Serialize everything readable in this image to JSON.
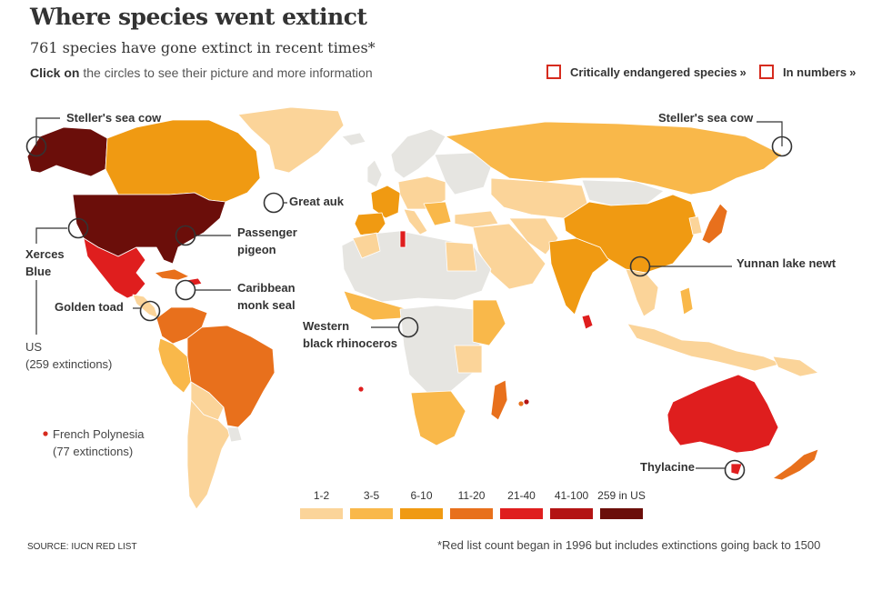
{
  "header": {
    "title": "Where species went extinct",
    "subtitle": "761 species have gone extinct in recent times*",
    "instruction_bold": "Click on",
    "instruction_rest": " the circles to see their picture and more information"
  },
  "toggles": [
    {
      "label": "Critically endangered species",
      "chevron": "»"
    },
    {
      "label": "In numbers",
      "chevron": "»"
    }
  ],
  "colors": {
    "c1_2": "#fbd499",
    "c3_5": "#f9b84a",
    "c6_10": "#f09a12",
    "c11_20": "#e8701c",
    "c21_40": "#df1e1e",
    "c41_100": "#b31414",
    "c259": "#6b0e0a",
    "nodata": "#e6e5e1",
    "accent": "#d62b1e"
  },
  "markers": [
    {
      "name": "Steller's sea cow",
      "side": "left"
    },
    {
      "name": "Steller's sea cow",
      "side": "right"
    },
    {
      "name": "Great auk"
    },
    {
      "name": "Passenger pigeon",
      "lines": [
        "Passenger",
        "pigeon"
      ]
    },
    {
      "name": "Xerces Blue",
      "lines": [
        "Xerces",
        "Blue"
      ]
    },
    {
      "name": "Caribbean monk seal",
      "lines": [
        "Caribbean",
        "monk seal"
      ]
    },
    {
      "name": "Golden toad"
    },
    {
      "name": "Western black rhinoceros",
      "lines": [
        "Western",
        "black rhinoceros"
      ]
    },
    {
      "name": "Yunnan lake newt"
    },
    {
      "name": "Thylacine"
    }
  ],
  "annotations": {
    "us": {
      "line1": "US",
      "line2": "(259 extinctions)"
    },
    "polynesia": {
      "line1": "French Polynesia",
      "line2": "(77 extinctions)"
    }
  },
  "legend": [
    {
      "label": "1-2",
      "color": "#fbd499"
    },
    {
      "label": "3-5",
      "color": "#f9b84a"
    },
    {
      "label": "6-10",
      "color": "#f09a12"
    },
    {
      "label": "11-20",
      "color": "#e8701c"
    },
    {
      "label": "21-40",
      "color": "#df1e1e"
    },
    {
      "label": "41-100",
      "color": "#b31414"
    },
    {
      "label": "259 in US",
      "color": "#6b0e0a"
    }
  ],
  "footer": {
    "source": "SOURCE: IUCN RED LIST",
    "footnote": "*Red list count began in 1996 but includes extinctions going back to 1500"
  }
}
